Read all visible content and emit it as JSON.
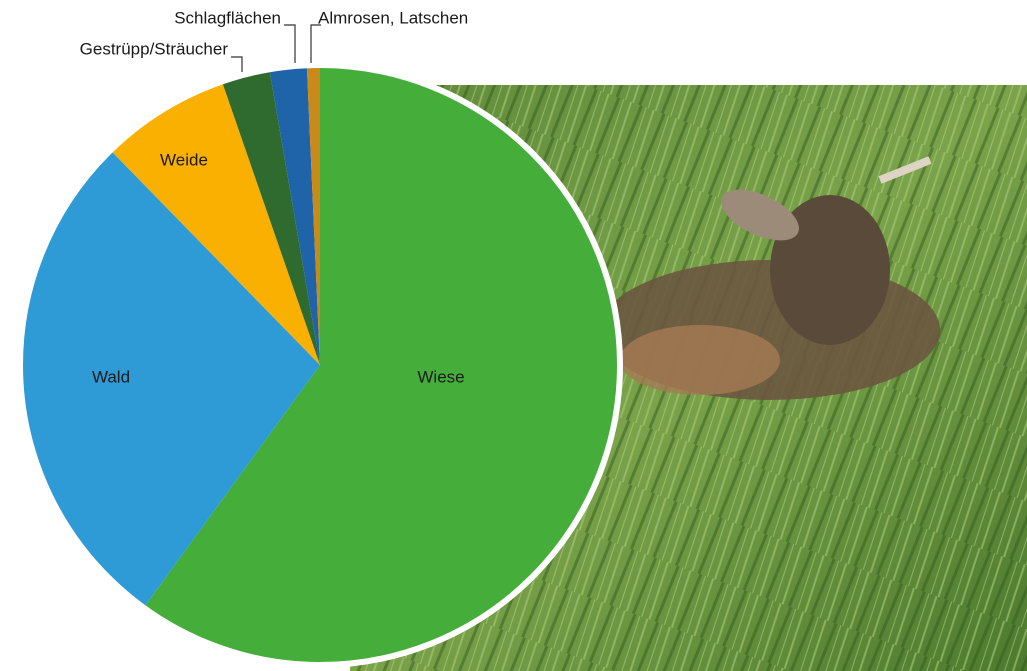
{
  "chart_data": {
    "type": "pie",
    "categories": [
      "Wiese",
      "Wald",
      "Weide",
      "Gestrüpp/Sträucher",
      "Schlagflächen",
      "Almrosen, Latschen"
    ],
    "values": [
      60,
      27.7,
      7,
      2.6,
      2,
      0.7
    ],
    "colors": [
      "#45ad3a",
      "#2e9ad6",
      "#f9b000",
      "#2f6b2f",
      "#1f63a8",
      "#c98a1a"
    ]
  }
}
